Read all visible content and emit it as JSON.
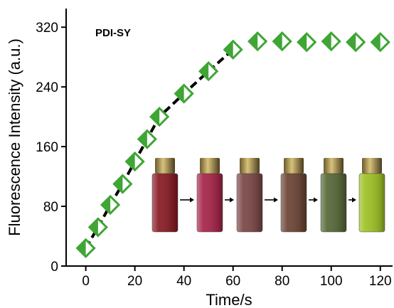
{
  "chart_data": {
    "type": "scatter",
    "annotation": "PDI-SY",
    "xlabel": "Time/s",
    "ylabel": "Fluorescence Intensity (a.u.)",
    "xlim": [
      -8,
      125
    ],
    "ylim": [
      0,
      345
    ],
    "xticks": [
      0,
      20,
      40,
      60,
      80,
      100,
      120
    ],
    "yticks": [
      0,
      80,
      160,
      240,
      320
    ],
    "grid": false,
    "marker_color": "#3fa535",
    "line_color": "#000000",
    "fit_line_x_range": [
      0,
      60
    ],
    "series": [
      {
        "x": [
          0,
          5,
          10,
          15,
          20,
          25,
          30,
          40,
          50,
          60,
          70,
          80,
          90,
          100,
          110,
          120
        ],
        "y": [
          24,
          52,
          82,
          110,
          140,
          170,
          200,
          231,
          261,
          290,
          301,
          301,
          300,
          301,
          300,
          300
        ]
      }
    ],
    "inset": {
      "vial_count": 6,
      "vial_colors": [
        "#8a1f28",
        "#a8284c",
        "#7e4a4a",
        "#6e4738",
        "#5a6a3a",
        "#9fc228"
      ]
    }
  }
}
